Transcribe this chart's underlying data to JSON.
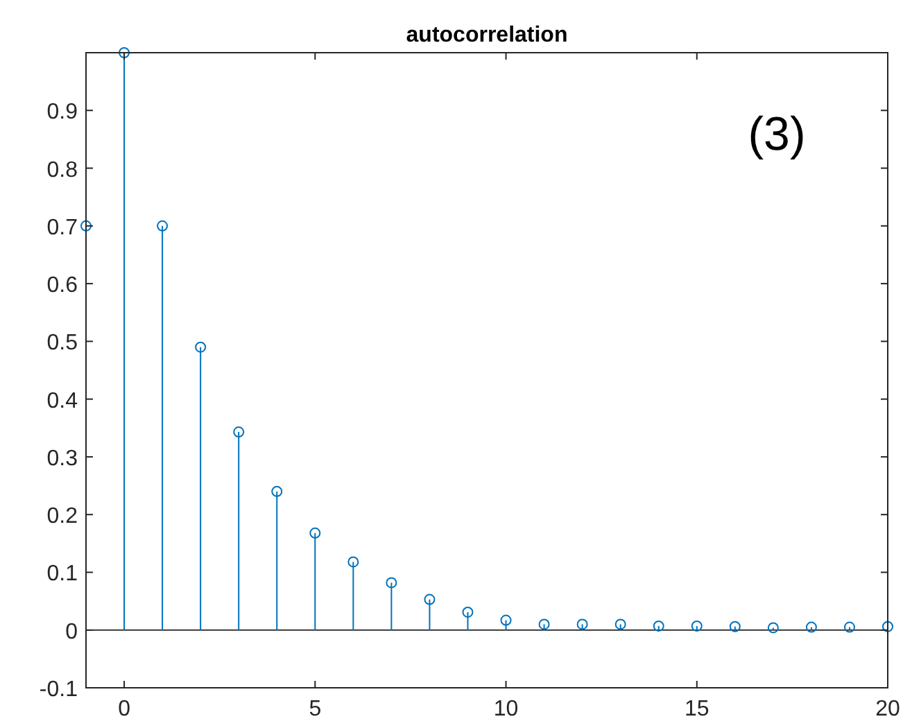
{
  "chart_data": {
    "type": "lollipop",
    "title": "autocorrelation",
    "x": [
      -1,
      0,
      1,
      2,
      3,
      4,
      5,
      6,
      7,
      8,
      9,
      10,
      11,
      12,
      13,
      14,
      15,
      16,
      17,
      18,
      19,
      20
    ],
    "series": [
      {
        "color": "#0072bd",
        "values": [
          0.7,
          1,
          0.7,
          0.49,
          0.343,
          0.24,
          0.168,
          0.118,
          0.082,
          0.053,
          0.031,
          0.017,
          0.01,
          0.01,
          0.01,
          0.007,
          0.007,
          0.006,
          0.004,
          0.005,
          0.005,
          0.006
        ]
      }
    ],
    "xlim": [
      -1,
      20
    ],
    "xticks": [
      0,
      5,
      10,
      15,
      20
    ],
    "ylim": [
      -0.1,
      1
    ],
    "yticks": [
      -0.1,
      0,
      0.1,
      0.2,
      0.3,
      0.4,
      0.5,
      0.6,
      0.7,
      0.8,
      0.9
    ],
    "marker": "circle",
    "grid": false,
    "annotations": [
      "(3)"
    ]
  }
}
